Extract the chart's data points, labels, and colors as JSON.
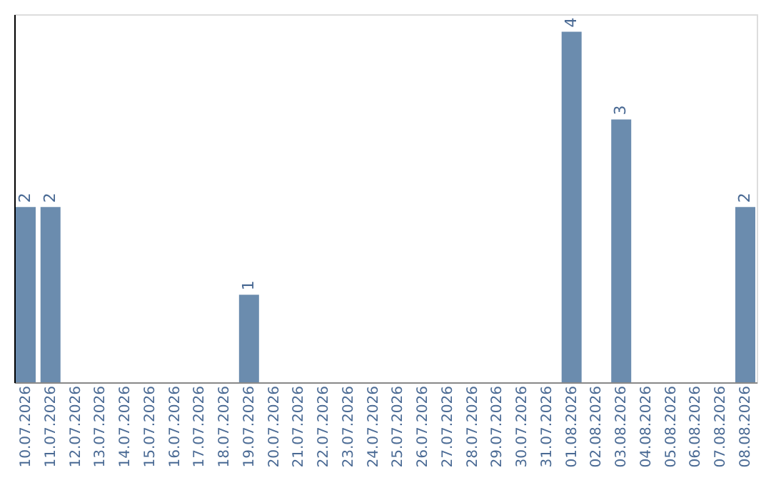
{
  "chart_data": {
    "type": "bar",
    "categories": [
      "10.07.2026",
      "11.07.2026",
      "12.07.2026",
      "13.07.2026",
      "14.07.2026",
      "15.07.2026",
      "16.07.2026",
      "17.07.2026",
      "18.07.2026",
      "19.07.2026",
      "20.07.2026",
      "21.07.2026",
      "22.07.2026",
      "23.07.2026",
      "24.07.2026",
      "25.07.2026",
      "26.07.2026",
      "27.07.2026",
      "28.07.2026",
      "29.07.2026",
      "30.07.2026",
      "31.07.2026",
      "01.08.2026",
      "02.08.2026",
      "03.08.2026",
      "04.08.2026",
      "05.08.2026",
      "06.08.2026",
      "07.08.2026",
      "08.08.2026"
    ],
    "values": [
      2,
      2,
      0,
      0,
      0,
      0,
      0,
      0,
      0,
      1,
      0,
      0,
      0,
      0,
      0,
      0,
      0,
      0,
      0,
      0,
      0,
      0,
      4,
      0,
      3,
      0,
      0,
      0,
      0,
      2
    ],
    "value_labels": [
      "2",
      "2",
      null,
      null,
      null,
      null,
      null,
      null,
      null,
      "1",
      null,
      null,
      null,
      null,
      null,
      null,
      null,
      null,
      null,
      null,
      null,
      null,
      "4",
      null,
      "3",
      null,
      null,
      null,
      null,
      "2"
    ],
    "color": "#6b8cae",
    "ylim": [
      0,
      4.2
    ],
    "grid": false,
    "tick_labels": "x"
  }
}
